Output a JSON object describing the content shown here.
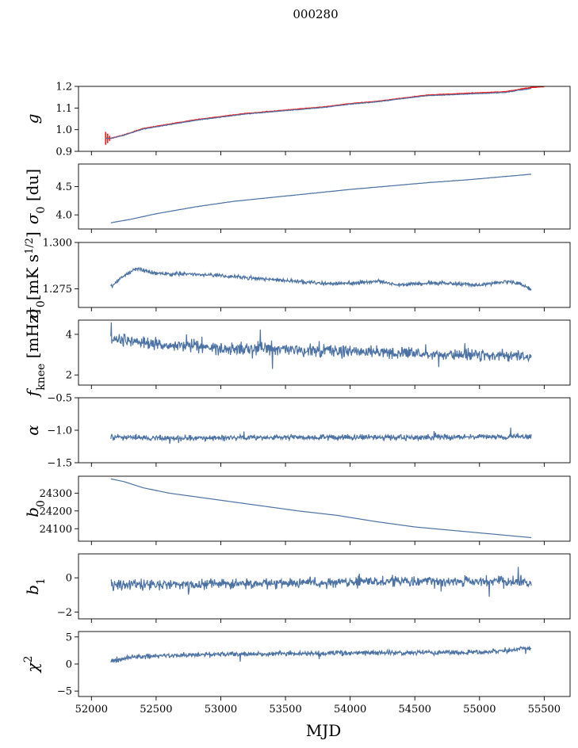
{
  "figure": {
    "title": "000280",
    "xlabel": "MJD"
  },
  "chart_data": [
    {
      "type": "line",
      "ylabel": "g",
      "xlim": [
        51900,
        55700
      ],
      "ylim": [
        0.9,
        1.2
      ],
      "yticks": [
        "0.9",
        "1.0",
        "1.1",
        "1.2"
      ],
      "yticks_values": [
        0.9,
        1.0,
        1.1,
        1.2
      ],
      "series": [
        {
          "key": "fit",
          "color": "#ff1a1a",
          "x": [
            52110,
            52150,
            52250,
            52400,
            52600,
            52800,
            53000,
            53200,
            53400,
            53600,
            53800,
            54000,
            54200,
            54400,
            54600,
            54800,
            55000,
            55200,
            55300,
            55400,
            55500
          ],
          "values": [
            0.96,
            0.96,
            0.975,
            1.005,
            1.025,
            1.045,
            1.06,
            1.075,
            1.085,
            1.095,
            1.105,
            1.12,
            1.13,
            1.145,
            1.16,
            1.165,
            1.17,
            1.175,
            1.185,
            1.195,
            1.2
          ]
        },
        {
          "key": "data",
          "color": "#4c72a4",
          "x": [
            52110,
            52150,
            52250,
            52400,
            52600,
            52800,
            53000,
            53200,
            53400,
            53600,
            53800,
            54000,
            54200,
            54400,
            54600,
            54800,
            55000,
            55200,
            55300,
            55400
          ],
          "values": [
            0.96,
            0.96,
            0.975,
            1.003,
            1.023,
            1.043,
            1.058,
            1.073,
            1.083,
            1.093,
            1.103,
            1.118,
            1.128,
            1.143,
            1.157,
            1.162,
            1.167,
            1.172,
            1.182,
            1.19
          ]
        }
      ]
    },
    {
      "type": "line",
      "ylabel": "σ0 [du]",
      "xlim": [
        51900,
        55700
      ],
      "ylim": [
        3.75,
        4.9
      ],
      "yticks": [
        "4.0",
        "4.5"
      ],
      "yticks_values": [
        4.0,
        4.5
      ],
      "series": [
        {
          "key": "data",
          "color": "#4c72a4",
          "x": [
            52150,
            52300,
            52500,
            52800,
            53100,
            53400,
            53700,
            54000,
            54300,
            54600,
            54900,
            55200,
            55400
          ],
          "values": [
            3.86,
            3.92,
            4.02,
            4.14,
            4.24,
            4.31,
            4.38,
            4.45,
            4.51,
            4.57,
            4.62,
            4.68,
            4.72
          ]
        }
      ]
    },
    {
      "type": "line",
      "ylabel": "σ0[mK s^1/2]",
      "xlim": [
        51900,
        55700
      ],
      "ylim": [
        1.265,
        1.3
      ],
      "yticks": [
        "1.275",
        "1.300"
      ],
      "yticks_values": [
        1.275,
        1.3
      ],
      "series": [
        {
          "key": "data",
          "color": "#4c72a4",
          "x": [
            52150,
            52250,
            52350,
            52450,
            52600,
            52800,
            53000,
            53200,
            53400,
            53600,
            53800,
            54000,
            54200,
            54400,
            54600,
            54800,
            55000,
            55200,
            55300,
            55400
          ],
          "values": [
            1.276,
            1.282,
            1.286,
            1.284,
            1.283,
            1.283,
            1.282,
            1.281,
            1.28,
            1.279,
            1.278,
            1.278,
            1.279,
            1.277,
            1.278,
            1.278,
            1.277,
            1.279,
            1.278,
            1.275
          ]
        }
      ]
    },
    {
      "type": "line",
      "ylabel": "f_knee [mHz]",
      "xlim": [
        51900,
        55700
      ],
      "ylim": [
        1.5,
        4.7
      ],
      "yticks": [
        "2",
        "4"
      ],
      "yticks_values": [
        2,
        4
      ],
      "series": [
        {
          "key": "data",
          "color": "#4c72a4",
          "x": [
            52150,
            52300,
            52500,
            52800,
            53100,
            53400,
            53700,
            54000,
            54300,
            54600,
            54900,
            55200,
            55400
          ],
          "values": [
            3.8,
            3.7,
            3.5,
            3.4,
            3.3,
            3.3,
            3.2,
            3.2,
            3.1,
            3.0,
            3.0,
            2.95,
            2.9
          ]
        }
      ]
    },
    {
      "type": "line",
      "ylabel": "α",
      "xlim": [
        51900,
        55700
      ],
      "ylim": [
        -1.5,
        -0.5
      ],
      "yticks": [
        "−1.5",
        "−1.0",
        "−0.5"
      ],
      "yticks_values": [
        -1.5,
        -1.0,
        -0.5
      ],
      "series": [
        {
          "key": "data",
          "color": "#4c72a4",
          "x": [
            52150,
            52500,
            53000,
            53500,
            54000,
            54500,
            55000,
            55400
          ],
          "values": [
            -1.1,
            -1.12,
            -1.12,
            -1.11,
            -1.11,
            -1.11,
            -1.1,
            -1.1
          ]
        }
      ]
    },
    {
      "type": "line",
      "ylabel": "b0",
      "xlim": [
        51900,
        55700
      ],
      "ylim": [
        24030,
        24395
      ],
      "yticks": [
        "24100",
        "24200",
        "24300"
      ],
      "yticks_values": [
        24100,
        24200,
        24300
      ],
      "series": [
        {
          "key": "data",
          "color": "#4c72a4",
          "x": [
            52150,
            52250,
            52400,
            52600,
            52800,
            53000,
            53300,
            53600,
            53900,
            54200,
            54500,
            54800,
            55100,
            55400
          ],
          "values": [
            24380,
            24365,
            24330,
            24300,
            24280,
            24260,
            24230,
            24200,
            24175,
            24140,
            24110,
            24090,
            24070,
            24050
          ]
        }
      ]
    },
    {
      "type": "line",
      "ylabel": "b1",
      "xlim": [
        51900,
        55700
      ],
      "ylim": [
        -2.4,
        1.4
      ],
      "yticks": [
        "−2",
        "0"
      ],
      "yticks_values": [
        -2,
        0
      ],
      "series": [
        {
          "key": "data",
          "color": "#4c72a4",
          "x": [
            52150,
            52500,
            53000,
            53500,
            54000,
            54500,
            55000,
            55400
          ],
          "values": [
            -0.4,
            -0.4,
            -0.35,
            -0.3,
            -0.25,
            -0.2,
            -0.2,
            -0.25
          ]
        }
      ]
    },
    {
      "type": "line",
      "ylabel": "χ²",
      "xlim": [
        51900,
        55700
      ],
      "ylim": [
        -6,
        6
      ],
      "yticks": [
        "−5",
        "0",
        "5"
      ],
      "yticks_values": [
        -5,
        0,
        5
      ],
      "xticks": [
        "52000",
        "52500",
        "53000",
        "53500",
        "54000",
        "54500",
        "55000",
        "55500"
      ],
      "xticks_values": [
        52000,
        52500,
        53000,
        53500,
        54000,
        54500,
        55000,
        55500
      ],
      "series": [
        {
          "key": "data",
          "color": "#4c72a4",
          "x": [
            52150,
            52300,
            52600,
            53000,
            53400,
            53800,
            54200,
            54600,
            55000,
            55200,
            55400
          ],
          "values": [
            0.5,
            1.3,
            1.6,
            1.8,
            1.9,
            2.0,
            2.1,
            2.1,
            2.1,
            2.5,
            3.0
          ]
        }
      ]
    }
  ]
}
